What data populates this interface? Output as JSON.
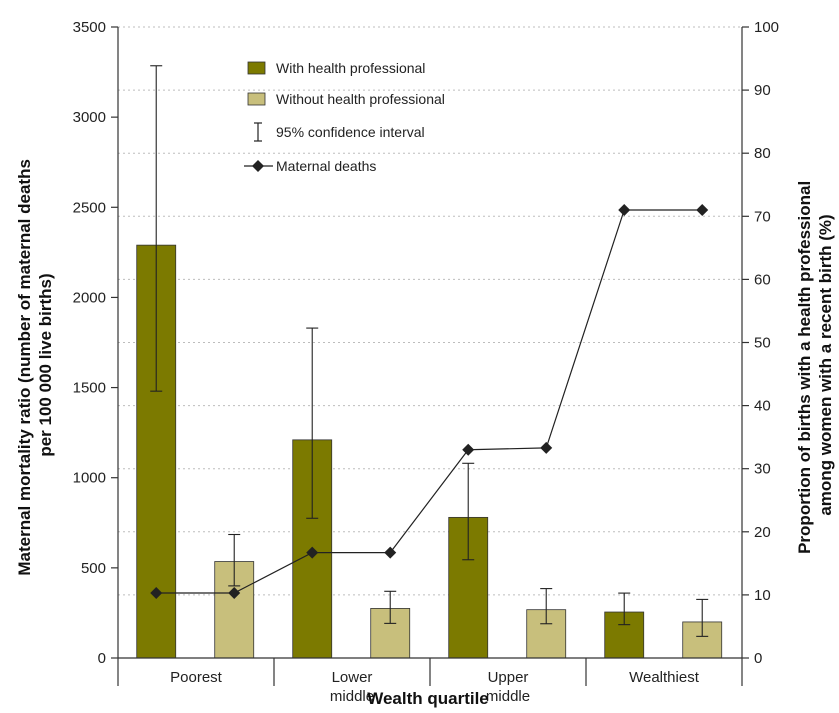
{
  "chart_data": {
    "type": "bar",
    "xlabel": "Wealth quartile",
    "ylabel_left": "Maternal mortality ratio (number of maternal deaths per 100 000 live births)",
    "ylabel_left_lines": [
      "Maternal mortality ratio (number of maternal deaths",
      "per 100 000 live births)"
    ],
    "ylabel_right": "Proportion of births with a health professional among women with a recent birth (%)",
    "ylabel_right_lines": [
      "Proportion of births with a health professional",
      "among women with a recent birth (%)"
    ],
    "categories": [
      {
        "lines": [
          "Poorest"
        ]
      },
      {
        "lines": [
          "Lower",
          "middle"
        ]
      },
      {
        "lines": [
          "Upper",
          "middle"
        ]
      },
      {
        "lines": [
          "Wealthiest"
        ]
      }
    ],
    "ylim_left": [
      0,
      3500
    ],
    "yticks_left": [
      0,
      500,
      1000,
      1500,
      2000,
      2500,
      3000,
      3500
    ],
    "ylim_right": [
      0,
      100
    ],
    "yticks_right": [
      0,
      10,
      20,
      30,
      40,
      50,
      60,
      70,
      80,
      90,
      100
    ],
    "grid": true,
    "series": [
      {
        "name": "With health professional",
        "color": "#7c7a00",
        "values": [
          2290,
          1210,
          780,
          255
        ],
        "ci_low": [
          1480,
          775,
          545,
          185
        ],
        "ci_high": [
          3285,
          1830,
          1080,
          360
        ]
      },
      {
        "name": "Without health professional",
        "color": "#c8bf7c",
        "values": [
          535,
          275,
          268,
          200
        ],
        "ci_low": [
          400,
          192,
          190,
          120
        ],
        "ci_high": [
          685,
          370,
          385,
          325
        ]
      }
    ],
    "line_series": {
      "name": "Maternal deaths",
      "axis": "right",
      "color": "#222222",
      "marker": "diamond",
      "points": [
        10.3,
        10.3,
        16.7,
        16.7,
        33.0,
        33.3,
        71.0,
        71.0
      ]
    },
    "legend": {
      "placement": "top-center",
      "ci_label": "95% confidence interval"
    }
  }
}
